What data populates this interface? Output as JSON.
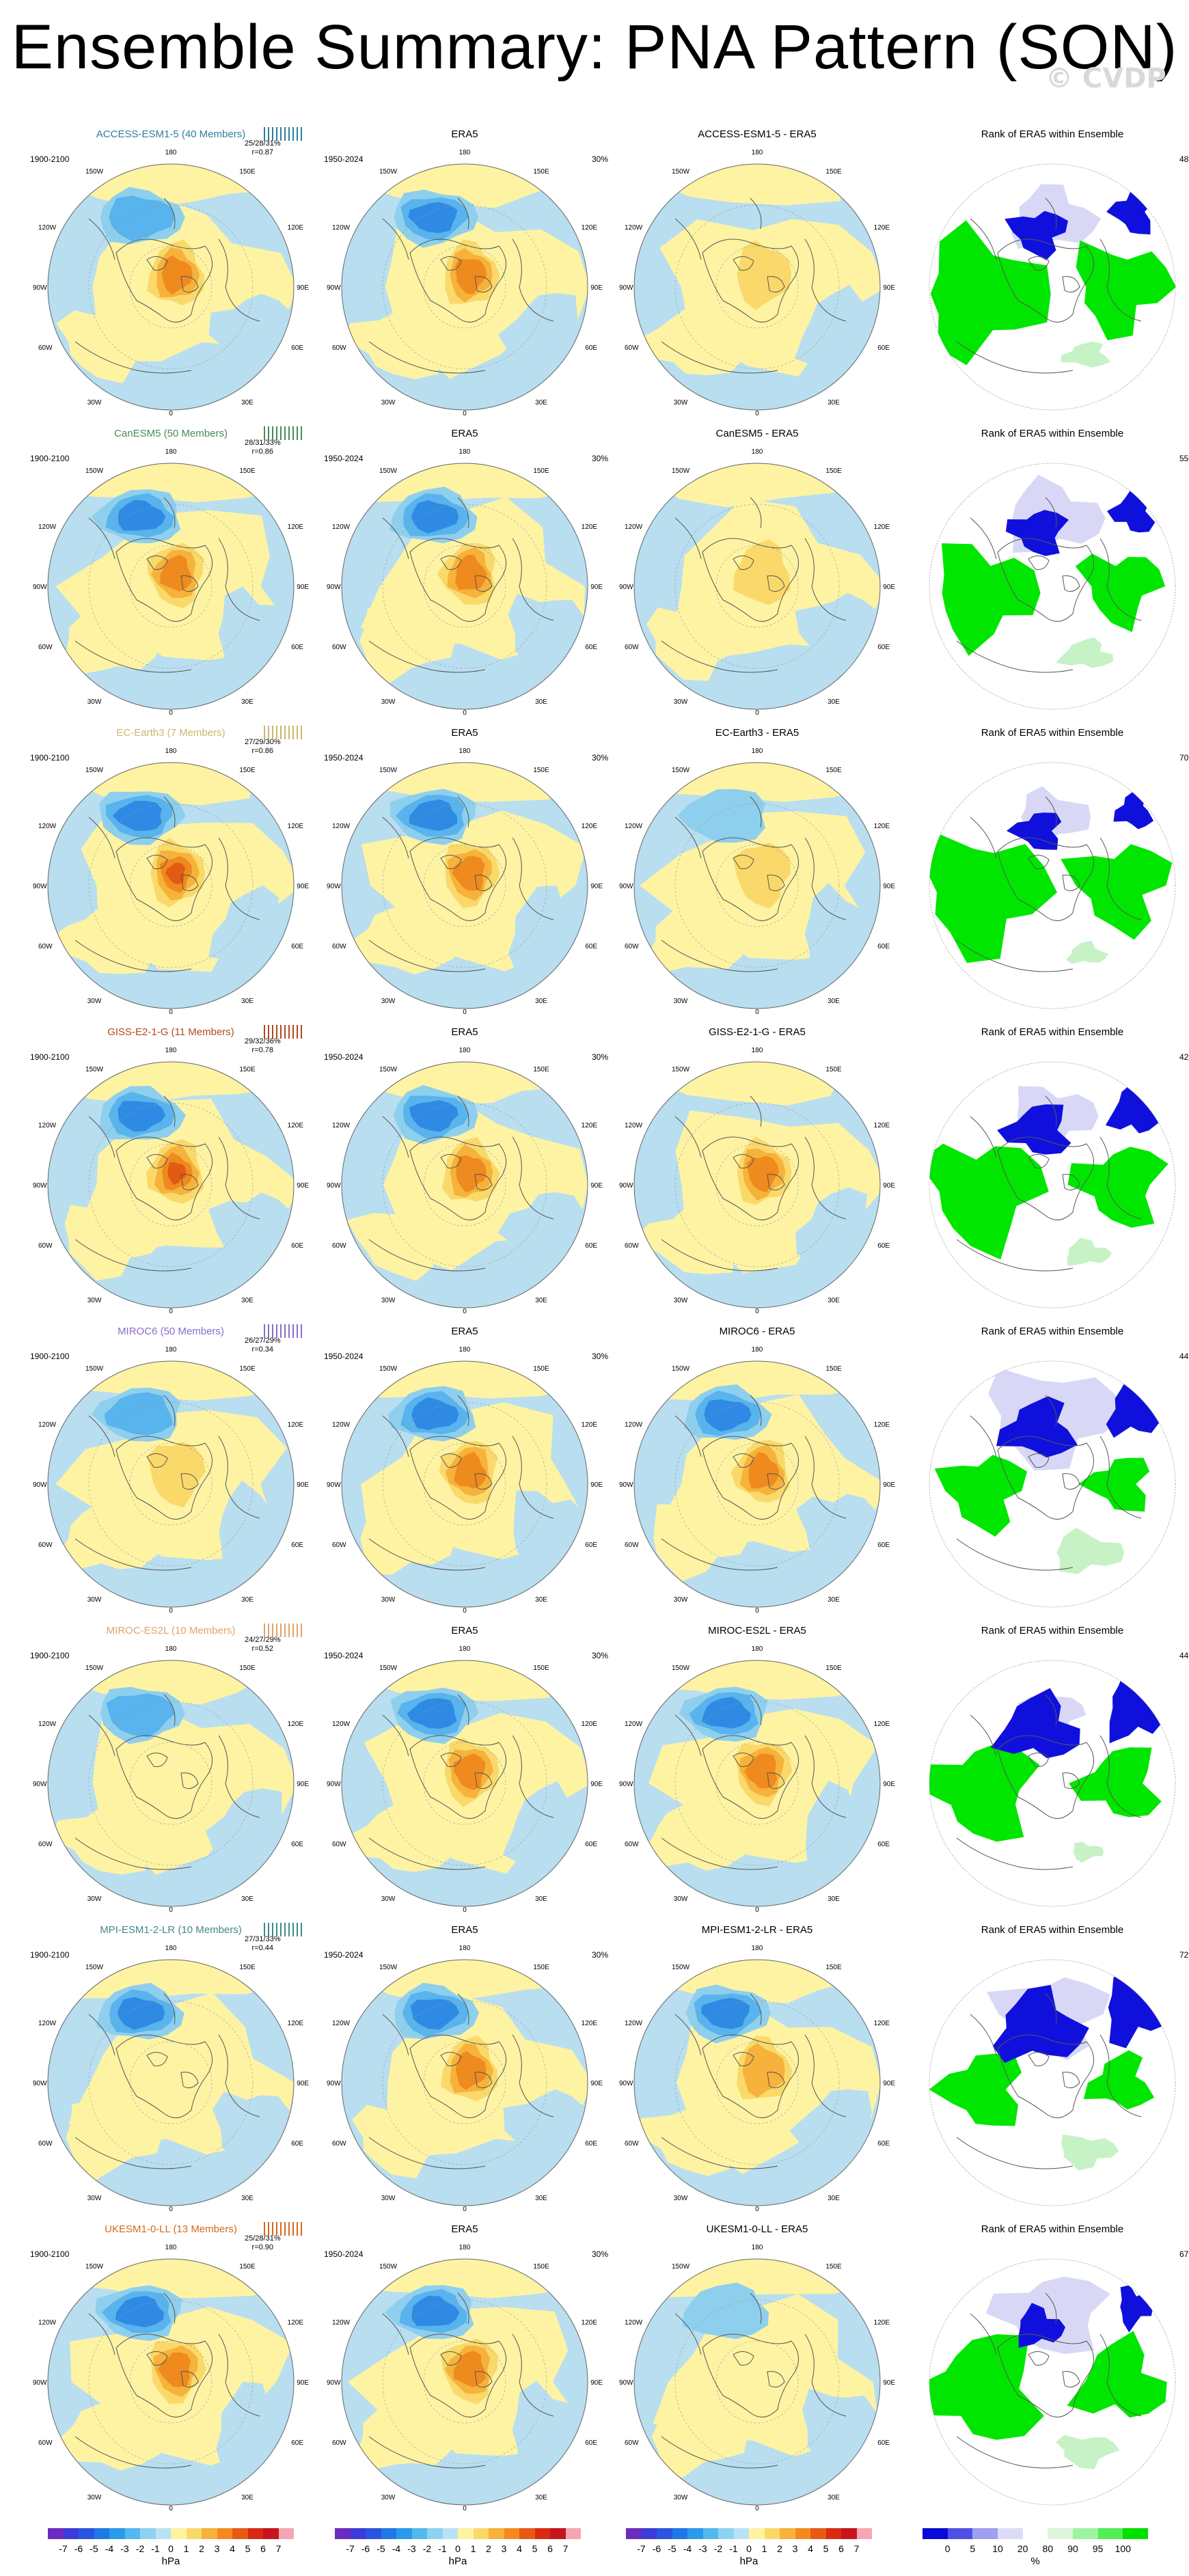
{
  "title": "Ensemble Summary: PNA Pattern (SON)",
  "watermark": "© CVDP",
  "column_titles": {
    "obs": "ERA5",
    "rank": "Rank of ERA5 within Ensemble"
  },
  "obs_period": "1950-2024",
  "obs_pct": "30%",
  "model_period": "1900-2100",
  "lon_labels": {
    "top": "180",
    "upper_left": "150W",
    "upper_right": "150E",
    "left_up": "120W",
    "right_up": "120E",
    "left": "90W",
    "right": "90E",
    "left_down": "60W",
    "right_down": "60E",
    "lower_left": "30W",
    "lower_right": "30E",
    "bottom": "0"
  },
  "rows": [
    {
      "name": "ACCESS-ESM1-5 (40 Members)",
      "color": "#2a7fa0",
      "stats_pct": "25/28/31%",
      "stats_r": "r=0.87",
      "diff_title": "ACCESS-ESM1-5 - ERA5",
      "rank_pct": "48%",
      "model": {
        "pos": 1.6,
        "neg": 1.2
      },
      "diff": {
        "pos": 0.3,
        "neg": 0.2
      },
      "rank": {
        "green": 0.55,
        "blue": 0.35,
        "pale": 0.35
      }
    },
    {
      "name": "CanESM5 (50 Members)",
      "color": "#4a8a55",
      "stats_pct": "28/31/33%",
      "stats_r": "r=0.86",
      "diff_title": "CanESM5 - ERA5",
      "rank_pct": "55%",
      "model": {
        "pos": 1.7,
        "neg": 1.6
      },
      "diff": {
        "pos": 0.3,
        "neg": 0.1
      },
      "rank": {
        "green": 0.45,
        "blue": 0.35,
        "pale": 0.4
      }
    },
    {
      "name": "EC-Earth3 (7 Members)",
      "color": "#c9b870",
      "stats_pct": "27/29/30%",
      "stats_r": "r=0.86",
      "diff_title": "EC-Earth3 - ERA5",
      "rank_pct": "70%",
      "model": {
        "pos": 1.9,
        "neg": 1.6
      },
      "diff": {
        "pos": 0.4,
        "neg": 0.6
      },
      "rank": {
        "green": 0.55,
        "blue": 0.3,
        "pale": 0.3
      }
    },
    {
      "name": "GISS-E2-1-G (11 Members)",
      "color": "#b34a1e",
      "stats_pct": "29/32/36%",
      "stats_r": "r=0.78",
      "diff_title": "GISS-E2-1-G - ERA5",
      "rank_pct": "42%",
      "model": {
        "pos": 2.6,
        "neg": 1.5
      },
      "diff": {
        "pos": 1.5,
        "neg": 0.2
      },
      "rank": {
        "green": 0.5,
        "blue": 0.4,
        "pale": 0.35
      }
    },
    {
      "name": "MIROC6 (50 Members)",
      "color": "#8a6dc9",
      "stats_pct": "26/27/29%",
      "stats_r": "r=0.34",
      "diff_title": "MIROC6 - ERA5",
      "rank_pct": "44%",
      "model": {
        "pos": 0.3,
        "neg": 0.9
      },
      "diff": {
        "pos": 1.3,
        "neg": 1.5
      },
      "rank": {
        "green": 0.35,
        "blue": 0.45,
        "pale": 0.55
      }
    },
    {
      "name": "MIROC-ES2L (10 Members)",
      "color": "#e0a36a",
      "stats_pct": "24/27/29%",
      "stats_r": "r=0.52",
      "diff_title": "MIROC-ES2L - ERA5",
      "rank_pct": "44%",
      "model": {
        "pos": 0.2,
        "neg": 1.2
      },
      "diff": {
        "pos": 1.4,
        "neg": 1.4
      },
      "rank": {
        "green": 0.45,
        "blue": 0.5,
        "pale": 0.25
      }
    },
    {
      "name": "MPI-ESM1-2-LR (10 Members)",
      "color": "#3f8a8a",
      "stats_pct": "27/31/33%",
      "stats_r": "r=0.44",
      "diff_title": "MPI-ESM1-2-LR - ERA5",
      "rank_pct": "72%",
      "model": {
        "pos": 0.2,
        "neg": 1.6
      },
      "diff": {
        "pos": 1.2,
        "neg": 1.4
      },
      "rank": {
        "green": 0.35,
        "blue": 0.55,
        "pale": 0.45
      }
    },
    {
      "name": "UKESM1-0-LL (13 Members)",
      "color": "#d2691e",
      "stats_pct": "25/28/31%",
      "stats_r": "r=0.90",
      "diff_title": "UKESM1-0-LL - ERA5",
      "rank_pct": "67%",
      "model": {
        "pos": 1.5,
        "neg": 1.7
      },
      "diff": {
        "pos": 0.2,
        "neg": 0.3
      },
      "rank": {
        "green": 0.5,
        "blue": 0.3,
        "pale": 0.45
      }
    }
  ],
  "era5_pattern": {
    "pos": 1.6,
    "neg": 1.6
  },
  "hpa_colorbar": {
    "labels": [
      "-7",
      "-6",
      "-5",
      "-4",
      "-3",
      "-2",
      "-1",
      "0",
      "1",
      "2",
      "3",
      "4",
      "5",
      "6",
      "7"
    ],
    "colors": [
      "#6b2bbf",
      "#3b3bd8",
      "#2a55e0",
      "#1f78e6",
      "#2a9bea",
      "#55b8ee",
      "#8ed2f2",
      "#b9e3f4",
      "#fff3a0",
      "#fad96a",
      "#f7b23c",
      "#f48a1f",
      "#e85a14",
      "#d92a12",
      "#c4161c",
      "#f6a6b0"
    ],
    "unit": "hPa"
  },
  "rank_colorbar": {
    "labels": [
      "0",
      "5",
      "10",
      "20",
      "80",
      "90",
      "95",
      "100"
    ],
    "colors": [
      "#0a0ad6",
      "#4f4fe6",
      "#9f9fef",
      "#dcdcf8",
      "#ffffff",
      "#dcf5dc",
      "#9ff29f",
      "#54ee54",
      "#00e000"
    ],
    "unit": "%"
  },
  "palette": {
    "ocean_blue": "#b8def0",
    "land_yellow": "#fdf3a3",
    "neg": [
      "#8ecfee",
      "#59b3ec",
      "#2f8ae4",
      "#1f65d8"
    ],
    "pos": [
      "#fad96a",
      "#f6b23a",
      "#ee8a1e",
      "#e25a14"
    ],
    "rank_green": "#00e600",
    "rank_blue": "#1010dc",
    "rank_pale": "#d8d8f6",
    "rank_lightgreen": "#c6f2c6"
  }
}
